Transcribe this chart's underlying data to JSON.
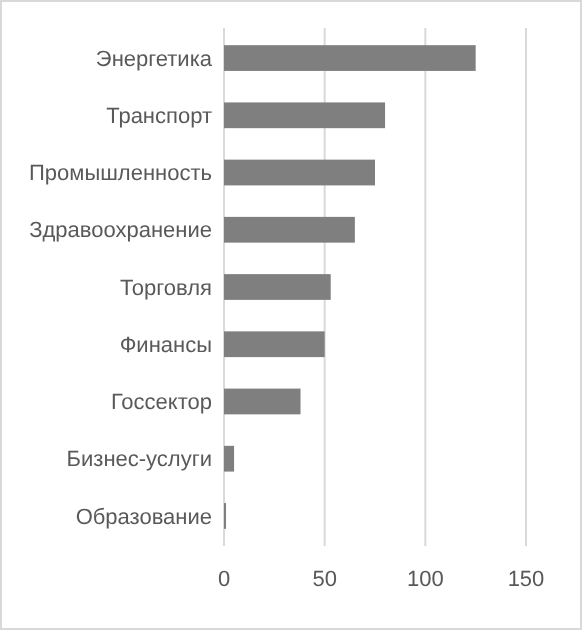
{
  "chart_data": {
    "type": "bar",
    "orientation": "horizontal",
    "categories": [
      "Энергетика",
      "Транспорт",
      "Промышленность",
      "Здравоохранение",
      "Торговля",
      "Финансы",
      "Госсектор",
      "Бизнес-услуги",
      "Образование"
    ],
    "values": [
      125,
      80,
      75,
      65,
      53,
      50,
      38,
      5,
      1
    ],
    "color": "#7f7f7f",
    "xlim": [
      0,
      150
    ],
    "xticks": [
      0,
      50,
      100,
      150
    ],
    "grid": "x"
  }
}
